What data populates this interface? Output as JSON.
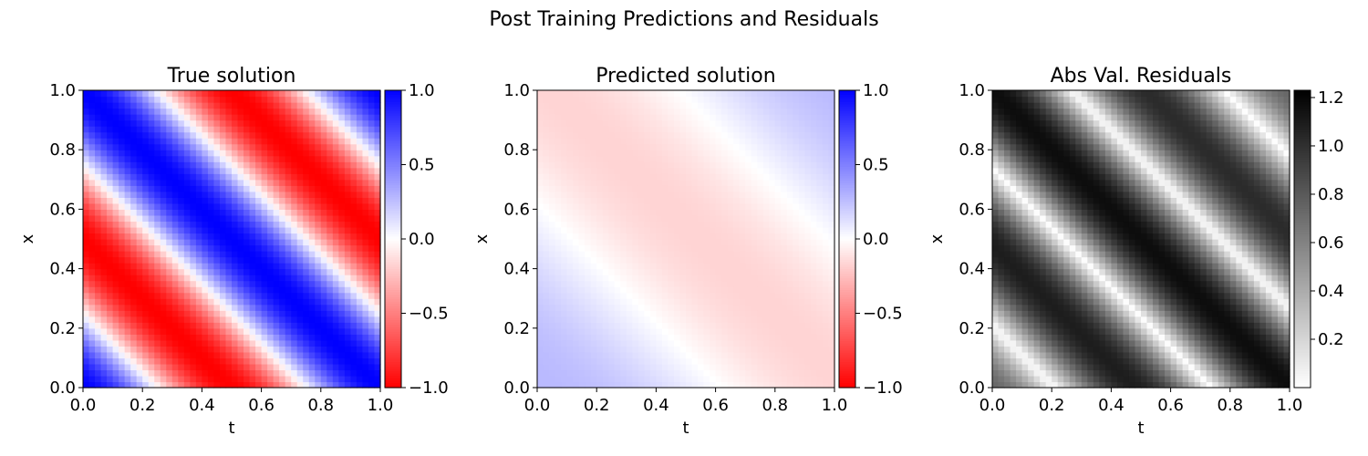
{
  "figure": {
    "suptitle": "Post Training Predictions and Residuals"
  },
  "chart_data": [
    {
      "type": "heatmap",
      "title": "True solution",
      "xlabel": "t",
      "ylabel": "x",
      "xlim": [
        0,
        1
      ],
      "ylim": [
        0,
        1
      ],
      "x_ticks": [
        "0.0",
        "0.2",
        "0.4",
        "0.6",
        "0.8",
        "1.0"
      ],
      "y_ticks": [
        "0.0",
        "0.2",
        "0.4",
        "0.6",
        "0.8",
        "1.0"
      ],
      "grid": false,
      "colormap": "bwr_r",
      "colors": {
        "low": "#ff0000",
        "mid": "#ffffff",
        "high": "#0000ff"
      },
      "clim": [
        -1.0,
        1.0
      ],
      "colorbar_ticks": [
        "1.0",
        "0.5",
        "0.0",
        "−0.5",
        "−1.0"
      ],
      "colorbar_tick_values": [
        1.0,
        0.5,
        0.0,
        -0.5,
        -1.0
      ],
      "resolution": [
        50,
        50
      ],
      "field": {
        "expression": "cos(2*pi*(x + t))",
        "amplitude": 1.0,
        "offset": 0.0
      }
    },
    {
      "type": "heatmap",
      "title": "Predicted solution",
      "xlabel": "t",
      "ylabel": "x",
      "xlim": [
        0,
        1
      ],
      "ylim": [
        0,
        1
      ],
      "x_ticks": [
        "0.0",
        "0.2",
        "0.4",
        "0.6",
        "0.8",
        "1.0"
      ],
      "y_ticks": [
        "0.0",
        "0.2",
        "0.4",
        "0.6",
        "0.8",
        "1.0"
      ],
      "grid": false,
      "colormap": "bwr_r",
      "colors": {
        "low": "#ff0000",
        "mid": "#ffffff",
        "high": "#0000ff"
      },
      "clim": [
        -1.0,
        1.0
      ],
      "colorbar_ticks": [
        "1.0",
        "0.5",
        "0.0",
        "−0.5",
        "−1.0"
      ],
      "colorbar_tick_values": [
        1.0,
        0.5,
        0.0,
        -0.5,
        -1.0
      ],
      "resolution": [
        50,
        50
      ],
      "field": {
        "expression": "0.05 + 0.22*cos(pi*(x + t) - 0.15)",
        "amplitude": 0.22,
        "offset": 0.05
      }
    },
    {
      "type": "heatmap",
      "title": "Abs Val. Residuals",
      "xlabel": "t",
      "ylabel": "x",
      "xlim": [
        0,
        1
      ],
      "ylim": [
        0,
        1
      ],
      "x_ticks": [
        "0.0",
        "0.2",
        "0.4",
        "0.6",
        "0.8",
        "1.0"
      ],
      "y_ticks": [
        "0.0",
        "0.2",
        "0.4",
        "0.6",
        "0.8",
        "1.0"
      ],
      "grid": false,
      "colormap": "Greys",
      "colors": {
        "low": "#ffffff",
        "high": "#000000"
      },
      "clim": [
        0.0,
        1.23
      ],
      "colorbar_ticks": [
        "1.2",
        "1.0",
        "0.8",
        "0.6",
        "0.4",
        "0.2"
      ],
      "colorbar_tick_values": [
        1.2,
        1.0,
        0.8,
        0.6,
        0.4,
        0.2
      ],
      "resolution": [
        50,
        50
      ],
      "field": {
        "expression": "|true - predicted|"
      }
    }
  ]
}
